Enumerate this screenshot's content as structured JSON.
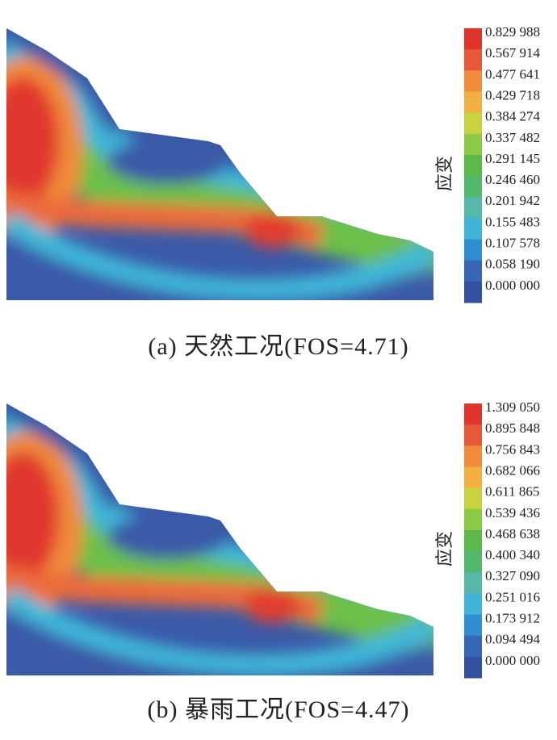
{
  "panels": [
    {
      "legend_title": "应变",
      "legend_labels": [
        "0.829 988",
        "0.567 914",
        "0.477 641",
        "0.429 718",
        "0.384 274",
        "0.337 482",
        "0.291 145",
        "0.246 460",
        "0.201 942",
        "0.155 483",
        "0.107 578",
        "0.058 190",
        "0.000 000"
      ],
      "caption": "(a) 天然工况(FOS=4.71)"
    },
    {
      "legend_title": "应变",
      "legend_labels": [
        "1.309 050",
        "0.895 848",
        "0.756 843",
        "0.682 066",
        "0.611 865",
        "0.539 436",
        "0.468 638",
        "0.400 340",
        "0.327 090",
        "0.251 016",
        "0.173 912",
        "0.094 494",
        "0.000 000"
      ],
      "caption": "(b) 暴雨工况(FOS=4.47)"
    }
  ]
}
